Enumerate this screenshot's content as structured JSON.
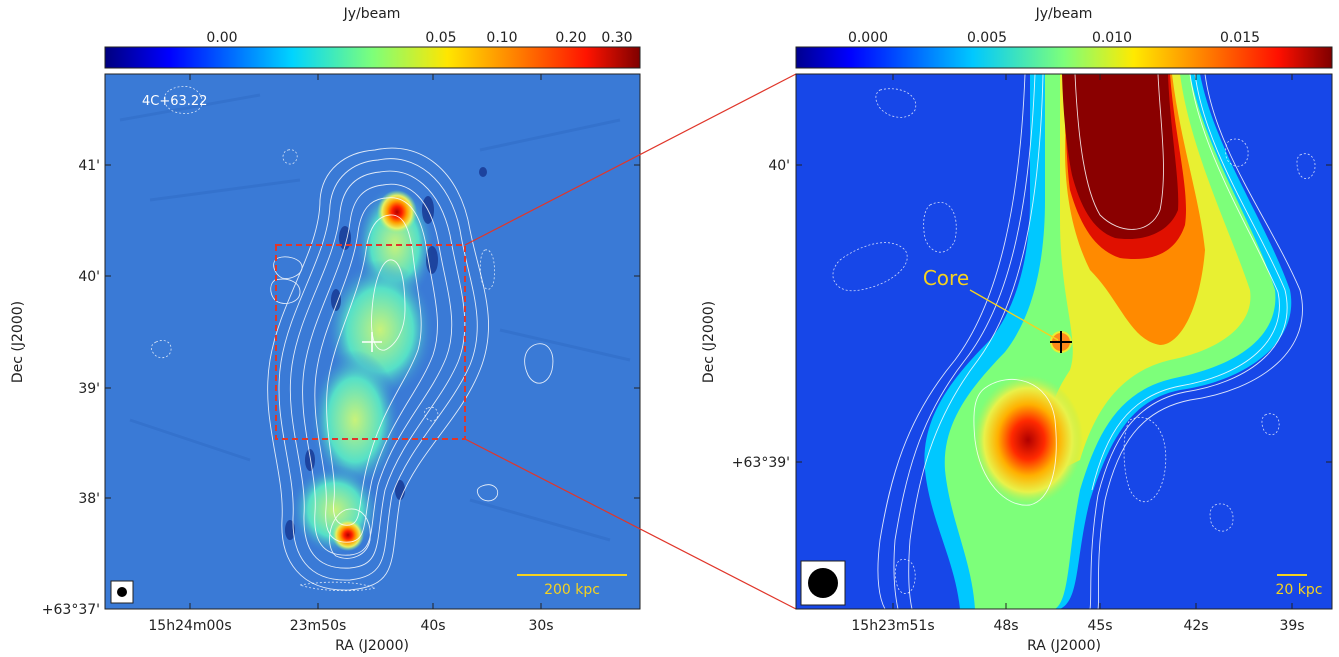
{
  "left_panel": {
    "colorbar": {
      "unit": "Jy/beam",
      "ticks": [
        "0.00",
        "0.05",
        "0.10",
        "0.20",
        "0.30"
      ]
    },
    "source_name": "4C+63.22",
    "scalebar_label": "200 kpc",
    "xlabel": "RA (J2000)",
    "ylabel": "Dec (J2000)",
    "x_ticks": [
      "15h24m00s",
      "23m50s",
      "40s",
      "30s"
    ],
    "y_ticks": [
      "41'",
      "40'",
      "39'",
      "38'",
      "+63°37'"
    ]
  },
  "right_panel": {
    "colorbar": {
      "unit": "Jy/beam",
      "ticks": [
        "0.000",
        "0.005",
        "0.010",
        "0.015"
      ]
    },
    "core_label": "Core",
    "scalebar_label": "20 kpc",
    "xlabel": "RA (J2000)",
    "ylabel": "Dec (J2000)",
    "x_ticks": [
      "15h23m51s",
      "48s",
      "45s",
      "42s",
      "39s"
    ],
    "y_ticks": [
      "40'",
      "+63°39'"
    ]
  },
  "colors": {
    "background_map": "#3a7ad6",
    "zoom_box": "#e0362a",
    "annotation_yellow": "#f5d21f",
    "contour": "#ffffff"
  }
}
